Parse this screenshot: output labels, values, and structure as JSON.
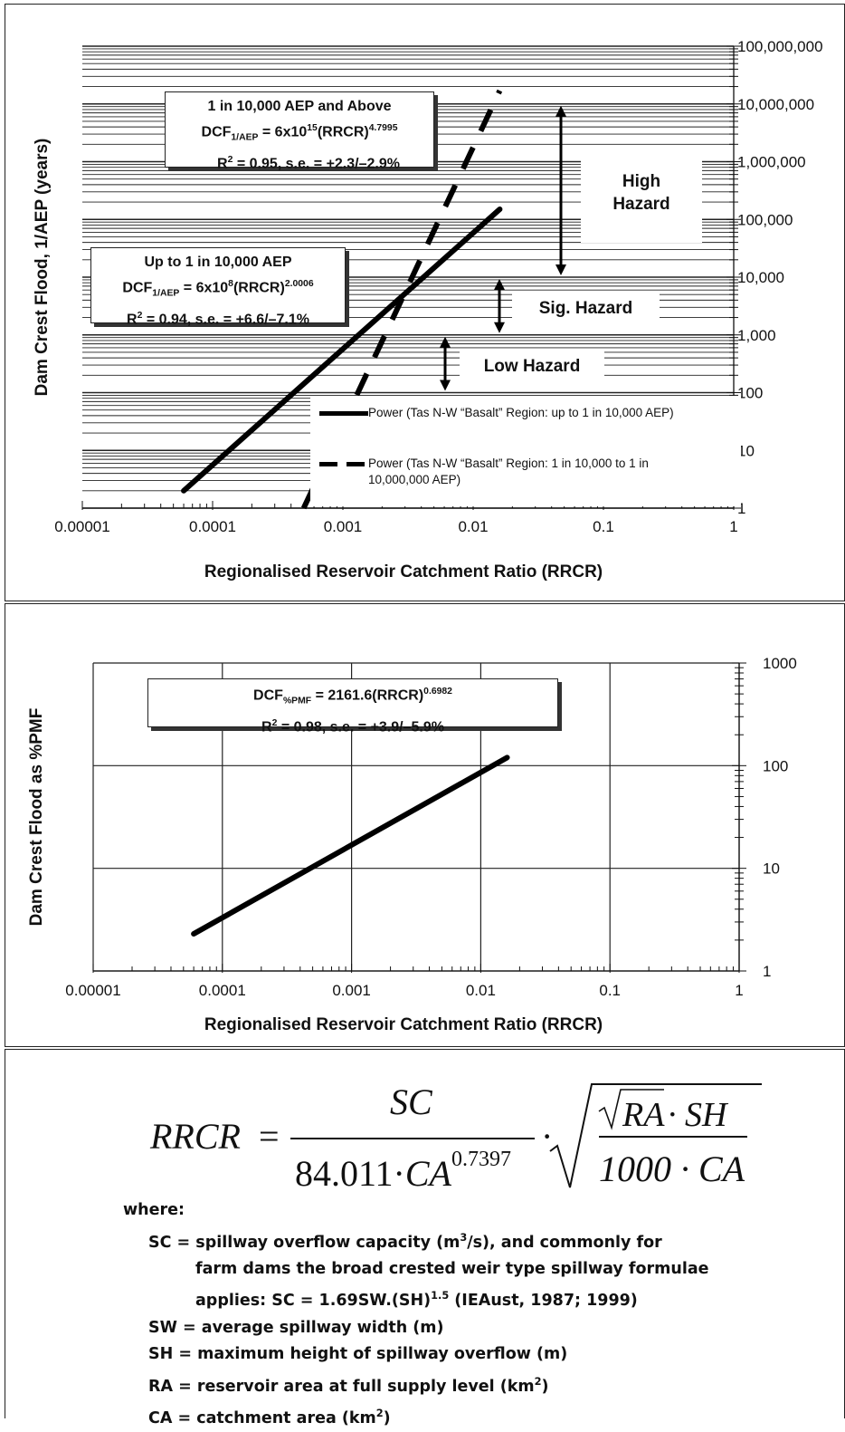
{
  "chart_data": [
    {
      "type": "line",
      "xlabel": "Regionalised Reservoir Catchment Ratio (RRCR)",
      "ylabel": "Dam Crest Flood, 1/AEP (years)",
      "x_scale": "log",
      "y_scale": "log",
      "xlim": [
        1e-05,
        1
      ],
      "ylim": [
        1,
        100000000
      ],
      "x_tick_labels": [
        "0.00001",
        "0.0001",
        "0.001",
        "0.01",
        "0.1",
        "1"
      ],
      "y_tick_labels": [
        "1",
        "10",
        "100",
        "1,000",
        "10,000",
        "100,000",
        "1,000,000",
        "10,000,000",
        "100,000,000"
      ],
      "x_ticks": [
        1e-05,
        0.0001,
        0.001,
        0.01,
        0.1,
        1
      ],
      "y_ticks": [
        1,
        10,
        100,
        1000,
        10000,
        100000,
        1000000,
        10000000,
        100000000
      ],
      "grid": "horizontal",
      "series": [
        {
          "name": "Power (Tas N-W “Basalt” Region: up to 1 in 10,000 AEP)",
          "style": "solid",
          "x": [
            6e-05,
            0.016
          ],
          "y": [
            2,
            150000
          ]
        },
        {
          "name": "Power (Tas N-W “Basalt” Region: 1 in 10,000 to 1 in 10,000,000 AEP)",
          "style": "dashed",
          "x": [
            0.0005,
            0.016
          ],
          "y": [
            1,
            17000000
          ]
        }
      ],
      "annotations": {
        "eq_high": {
          "line1": "1 in 10,000 AEP and Above",
          "dcf": "DCF",
          "sub": "1/AEP",
          "rhs": " = 6x10",
          "exp1": "15",
          "mid": "(RRCR)",
          "exp2": "4.7995",
          "r2": "R",
          "r2_exp": "2",
          "r2_rest": " = 0.95, s.e. = +2.3/–2.9%"
        },
        "eq_low": {
          "line1": "Up to 1 in 10,000 AEP",
          "dcf": "DCF",
          "sub": "1/AEP",
          "rhs": " = 6x10",
          "exp1": "8",
          "mid": "(RRCR)",
          "exp2": "2.0006",
          "r2": "R",
          "r2_exp": "2",
          "r2_rest": " = 0.94, s.e. = +6.6/–7.1%"
        },
        "high_hazard_1": "High",
        "high_hazard_2": "Hazard",
        "sig_hazard": "Sig. Hazard",
        "low_hazard": "Low Hazard"
      },
      "hazard_ranges": [
        {
          "label": "High Hazard",
          "y": [
            10000,
            10000000
          ]
        },
        {
          "label": "Sig. Hazard",
          "y": [
            1000,
            10000
          ]
        },
        {
          "label": "Low Hazard",
          "y": [
            100,
            1000
          ]
        }
      ]
    },
    {
      "type": "line",
      "xlabel": "Regionalised Reservoir Catchment Ratio (RRCR)",
      "ylabel": "Dam Crest Flood as %PMF",
      "x_scale": "log",
      "y_scale": "log",
      "xlim": [
        1e-05,
        1
      ],
      "ylim": [
        1,
        1000
      ],
      "x_tick_labels": [
        "0.00001",
        "0.0001",
        "0.001",
        "0.01",
        "0.1",
        "1"
      ],
      "y_tick_labels": [
        "1",
        "10",
        "100",
        "1000"
      ],
      "x_ticks": [
        1e-05,
        0.0001,
        0.001,
        0.01,
        0.1,
        1
      ],
      "y_ticks": [
        1,
        10,
        100,
        1000
      ],
      "grid": "major",
      "series": [
        {
          "style": "solid",
          "x": [
            6e-05,
            0.016
          ],
          "y": [
            2.3,
            120
          ]
        }
      ],
      "annotations": {
        "eq": {
          "dcf": "DCF",
          "sub": "%PMF",
          "rhs": " = 2161.6(RRCR)",
          "exp": "0.6982",
          "r2": "R",
          "r2_exp": "2",
          "r2_rest": " = 0.98, s.e. = +3.9/–5.9%"
        }
      }
    }
  ],
  "formula": {
    "lhs": "RRCR",
    "equals": "=",
    "numerator": "SC",
    "denom_coef": "84.011",
    "dot": "·",
    "denom_ca": "CA",
    "denom_exp": "0.7397",
    "inner_ra": "RA",
    "inner_sh": "· SH",
    "inner_denom": "1000 · CA",
    "where": "where:",
    "defs": [
      {
        "pre": "SC = spillway overflow capacity (m",
        "sup": "3",
        "post": "/s), and commonly for"
      },
      {
        "pre": "farm dams the broad crested weir type spillway formulae",
        "sup": "",
        "post": ""
      },
      {
        "pre": "applies:  SC = 1.69SW.(SH)",
        "sup": "1.5",
        "post": "  (IEAust, 1987; 1999)"
      },
      {
        "pre": "SW = average spillway width (m)",
        "sup": "",
        "post": ""
      },
      {
        "pre": "SH = maximum height of spillway overflow (m)",
        "sup": "",
        "post": ""
      },
      {
        "pre": "RA = reservoir area at full supply level (km",
        "sup": "2",
        "post": ")"
      },
      {
        "pre": "CA = catchment area (km",
        "sup": "2",
        "post": ")"
      }
    ]
  }
}
